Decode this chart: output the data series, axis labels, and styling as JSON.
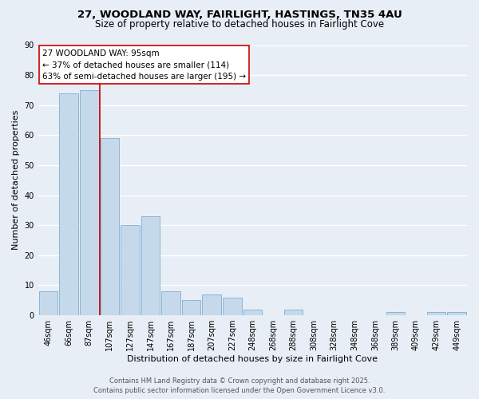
{
  "title": "27, WOODLAND WAY, FAIRLIGHT, HASTINGS, TN35 4AU",
  "subtitle": "Size of property relative to detached houses in Fairlight Cove",
  "bar_labels": [
    "46sqm",
    "66sqm",
    "87sqm",
    "107sqm",
    "127sqm",
    "147sqm",
    "167sqm",
    "187sqm",
    "207sqm",
    "227sqm",
    "248sqm",
    "268sqm",
    "288sqm",
    "308sqm",
    "328sqm",
    "348sqm",
    "368sqm",
    "389sqm",
    "409sqm",
    "429sqm",
    "449sqm"
  ],
  "bar_values": [
    8,
    74,
    75,
    59,
    30,
    33,
    8,
    5,
    7,
    6,
    2,
    0,
    2,
    0,
    0,
    0,
    0,
    1,
    0,
    1,
    1
  ],
  "bar_color": "#c6d9ea",
  "bar_edge_color": "#7aafd4",
  "vline_color": "#cc0000",
  "vline_x": 2.5,
  "ylim": [
    0,
    90
  ],
  "yticks": [
    0,
    10,
    20,
    30,
    40,
    50,
    60,
    70,
    80,
    90
  ],
  "ylabel": "Number of detached properties",
  "xlabel": "Distribution of detached houses by size in Fairlight Cove",
  "annotation_title": "27 WOODLAND WAY: 95sqm",
  "annotation_line1": "← 37% of detached houses are smaller (114)",
  "annotation_line2": "63% of semi-detached houses are larger (195) →",
  "annotation_box_facecolor": "#ffffff",
  "annotation_box_edgecolor": "#cc0000",
  "footer_line1": "Contains HM Land Registry data © Crown copyright and database right 2025.",
  "footer_line2": "Contains public sector information licensed under the Open Government Licence v3.0.",
  "bg_color": "#e8eef5",
  "plot_bg_color": "#e8eef5",
  "grid_color": "#ffffff",
  "title_fontsize": 9.5,
  "subtitle_fontsize": 8.5,
  "axis_label_fontsize": 8,
  "tick_fontsize": 7,
  "annotation_fontsize": 7.5,
  "footer_fontsize": 6
}
